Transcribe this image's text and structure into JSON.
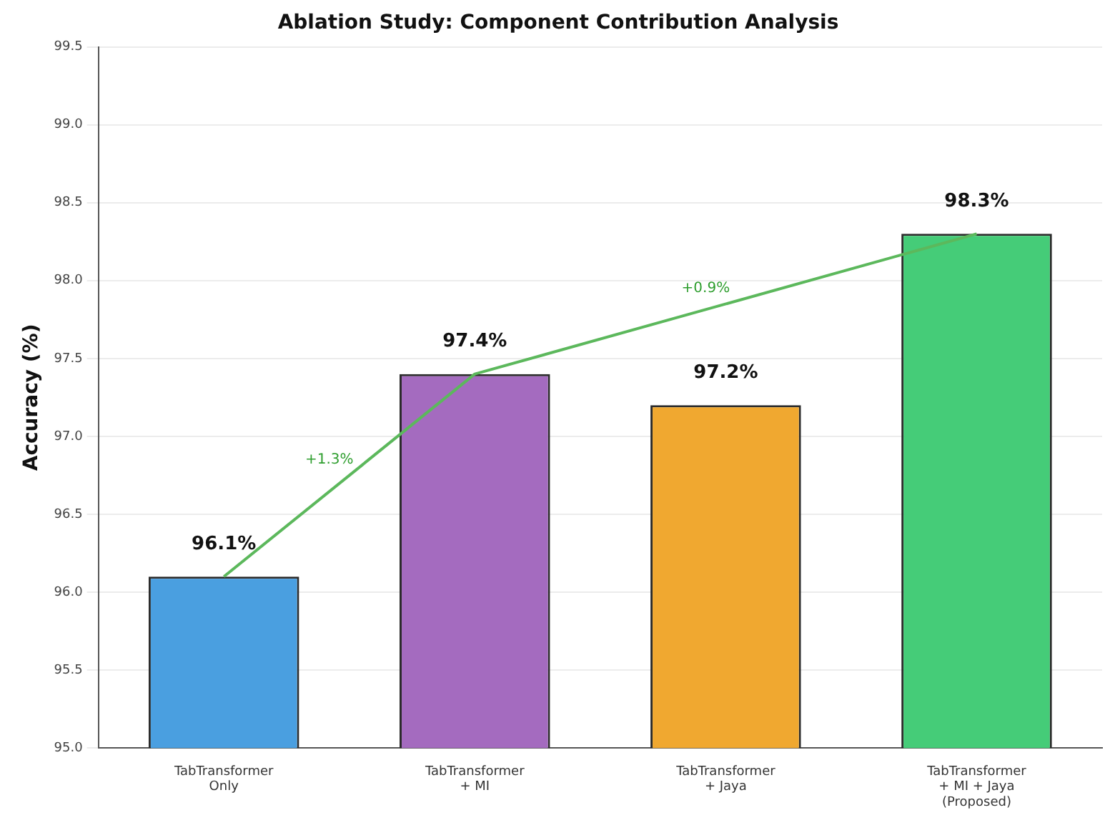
{
  "chart_data": {
    "type": "bar",
    "title": "Ablation Study: Component Contribution Analysis",
    "ylabel": "Accuracy (%)",
    "categories": [
      "TabTransformer\nOnly",
      "TabTransformer\n+ MI",
      "TabTransformer\n+ Jaya",
      "TabTransformer\n+ MI + Jaya\n(Proposed)"
    ],
    "series": [
      {
        "colors": [
          "#4a9fe0",
          "#a46bbf",
          "#f0a830",
          "#45cc78"
        ],
        "values": [
          96.1,
          97.4,
          97.2,
          98.3
        ],
        "value_labels": [
          "96.1%",
          "97.4%",
          "97.2%",
          "98.3%"
        ]
      },
      {
        "type": "line",
        "color": "#5cb85c",
        "x": [
          "TabTransformer\nOnly",
          "TabTransformer\n+ MI",
          "TabTransformer\n+ MI + Jaya\n(Proposed)"
        ],
        "values": [
          96.1,
          97.4,
          98.3
        ]
      }
    ],
    "annotations": [
      "+1.3%",
      "+0.9%"
    ],
    "ylim": [
      95.0,
      99.5
    ],
    "yticks": [
      {
        "value": 95,
        "label": "95.0"
      },
      95.5,
      {
        "value": 96,
        "label": "96.0"
      },
      96.5,
      {
        "value": 97,
        "label": "97.0"
      },
      97.5,
      {
        "value": 98,
        "label": "98.0"
      },
      98.5,
      {
        "value": 99,
        "label": "99.0"
      },
      99.5
    ],
    "grid": "y",
    "legend": false,
    "marker": "none"
  }
}
